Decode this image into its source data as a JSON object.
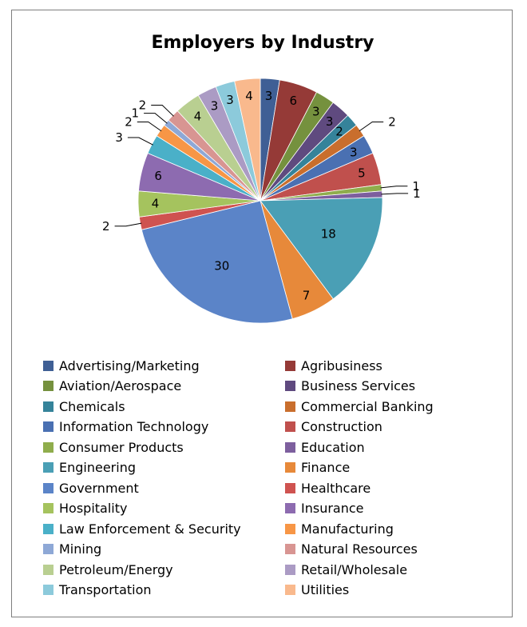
{
  "chart_data": {
    "type": "pie",
    "title": "Employers by Industry",
    "categories": [
      "Advertising/Marketing",
      "Agribusiness",
      "Aviation/Aerospace",
      "Business Services",
      "Chemicals",
      "Commercial Banking",
      "Information Technology",
      "Construction",
      "Consumer Products",
      "Education",
      "Engineering",
      "Finance",
      "Government",
      "Healthcare",
      "Hospitality",
      "Insurance",
      "Law Enforcement & Security",
      "Manufacturing",
      "Mining",
      "Natural Resources",
      "Petroleum/Energy",
      "Retail/Wholesale",
      "Transportation",
      "Utilities"
    ],
    "values": [
      3,
      6,
      3,
      3,
      2,
      2,
      3,
      5,
      1,
      1,
      18,
      7,
      30,
      2,
      4,
      6,
      3,
      2,
      1,
      2,
      4,
      3,
      3,
      4
    ],
    "colors": [
      "#3f5f95",
      "#953a37",
      "#75913e",
      "#5f4a7f",
      "#35839a",
      "#c96e2d",
      "#4a70b2",
      "#c0504d",
      "#8fad4c",
      "#7d5f9e",
      "#4a9fb5",
      "#e7893a",
      "#5b84c8",
      "#cf5350",
      "#a5c35e",
      "#8d6bb0",
      "#4ab0c8",
      "#f79646",
      "#8ea8d6",
      "#d89592",
      "#b9cf91",
      "#ab9bc4",
      "#8ccadb",
      "#f9b98d"
    ],
    "legend_position": "bottom"
  }
}
